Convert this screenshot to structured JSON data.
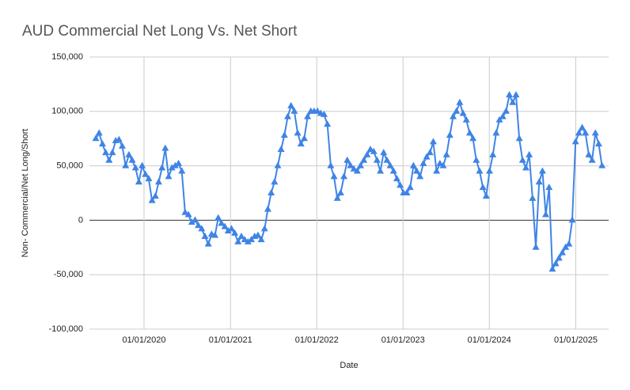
{
  "chart_data": {
    "type": "line",
    "title": "AUD Commercial Net Long Vs. Net Short",
    "x_label": "Date",
    "y_label": "Non- Commercial/Net Long/Short",
    "color": "#3f84e5",
    "grid": true,
    "xlim": [
      "2019-05-15",
      "2025-05-20"
    ],
    "xticks": [
      {
        "value": "2020-01-01",
        "label": "01/01/2020"
      },
      {
        "value": "2021-01-01",
        "label": "01/01/2021"
      },
      {
        "value": "2022-01-01",
        "label": "01/01/2022"
      },
      {
        "value": "2023-01-01",
        "label": "01/01/2023"
      },
      {
        "value": "2024-01-01",
        "label": "01/01/2024"
      },
      {
        "value": "2025-01-01",
        "label": "01/01/2025"
      }
    ],
    "ylim": [
      -100000,
      150000
    ],
    "yticks": [
      {
        "value": -100000,
        "label": "-100,000"
      },
      {
        "value": -50000,
        "label": "-50,000"
      },
      0,
      {
        "value": 50000,
        "label": "50,000"
      },
      {
        "value": 100000,
        "label": "100,000"
      },
      {
        "value": 150000,
        "label": "150,000"
      }
    ],
    "x": [
      "2019-06-11",
      "2019-06-25",
      "2019-07-09",
      "2019-07-23",
      "2019-08-06",
      "2019-08-20",
      "2019-09-03",
      "2019-09-17",
      "2019-10-01",
      "2019-10-15",
      "2019-10-29",
      "2019-11-12",
      "2019-11-26",
      "2019-12-10",
      "2019-12-24",
      "2020-01-07",
      "2020-01-21",
      "2020-02-04",
      "2020-02-18",
      "2020-03-03",
      "2020-03-17",
      "2020-03-31",
      "2020-04-14",
      "2020-04-28",
      "2020-05-12",
      "2020-05-26",
      "2020-06-09",
      "2020-06-23",
      "2020-07-07",
      "2020-07-21",
      "2020-08-04",
      "2020-08-18",
      "2020-09-01",
      "2020-09-15",
      "2020-09-29",
      "2020-10-13",
      "2020-10-27",
      "2020-11-10",
      "2020-11-24",
      "2020-12-08",
      "2020-12-22",
      "2021-01-05",
      "2021-01-19",
      "2021-02-02",
      "2021-02-16",
      "2021-03-02",
      "2021-03-16",
      "2021-03-30",
      "2021-04-13",
      "2021-04-27",
      "2021-05-11",
      "2021-05-25",
      "2021-06-08",
      "2021-06-22",
      "2021-07-06",
      "2021-07-20",
      "2021-08-03",
      "2021-08-17",
      "2021-08-31",
      "2021-09-14",
      "2021-09-28",
      "2021-10-12",
      "2021-10-26",
      "2021-11-09",
      "2021-11-23",
      "2021-12-07",
      "2021-12-21",
      "2022-01-04",
      "2022-01-18",
      "2022-02-01",
      "2022-02-15",
      "2022-03-01",
      "2022-03-15",
      "2022-03-29",
      "2022-04-12",
      "2022-04-26",
      "2022-05-10",
      "2022-05-24",
      "2022-06-07",
      "2022-06-21",
      "2022-07-05",
      "2022-07-19",
      "2022-08-02",
      "2022-08-16",
      "2022-08-30",
      "2022-09-13",
      "2022-09-27",
      "2022-10-11",
      "2022-10-25",
      "2022-11-08",
      "2022-11-22",
      "2022-12-06",
      "2022-12-20",
      "2023-01-03",
      "2023-01-17",
      "2023-01-31",
      "2023-02-14",
      "2023-02-28",
      "2023-03-14",
      "2023-03-28",
      "2023-04-11",
      "2023-04-25",
      "2023-05-09",
      "2023-05-23",
      "2023-06-06",
      "2023-06-20",
      "2023-07-04",
      "2023-07-18",
      "2023-08-01",
      "2023-08-15",
      "2023-08-29",
      "2023-09-12",
      "2023-09-26",
      "2023-10-10",
      "2023-10-24",
      "2023-11-07",
      "2023-11-21",
      "2023-12-05",
      "2023-12-19",
      "2024-01-02",
      "2024-01-16",
      "2024-01-30",
      "2024-02-13",
      "2024-02-27",
      "2024-03-12",
      "2024-03-26",
      "2024-04-09",
      "2024-04-23",
      "2024-05-07",
      "2024-05-21",
      "2024-06-04",
      "2024-06-18",
      "2024-07-02",
      "2024-07-16",
      "2024-07-30",
      "2024-08-13",
      "2024-08-27",
      "2024-09-10",
      "2024-09-24",
      "2024-10-08",
      "2024-10-22",
      "2024-11-05",
      "2024-11-19",
      "2024-12-03",
      "2024-12-17",
      "2024-12-31",
      "2025-01-14",
      "2025-01-28",
      "2025-02-11",
      "2025-02-25",
      "2025-03-11",
      "2025-03-25",
      "2025-04-08",
      "2025-04-22"
    ],
    "values": [
      75000,
      80000,
      70000,
      62000,
      55000,
      62000,
      73000,
      74000,
      68000,
      50000,
      60000,
      55000,
      48000,
      35000,
      50000,
      42000,
      38000,
      18000,
      22000,
      35000,
      48000,
      66000,
      40000,
      48000,
      50000,
      52000,
      45000,
      7000,
      5000,
      -2000,
      0,
      -5000,
      -8000,
      -15000,
      -22000,
      -13000,
      -14000,
      2000,
      -3000,
      -6000,
      -10000,
      -8000,
      -12000,
      -20000,
      -15000,
      -18000,
      -20000,
      -18000,
      -15000,
      -14000,
      -18000,
      -8000,
      10000,
      25000,
      35000,
      50000,
      65000,
      78000,
      95000,
      105000,
      100000,
      80000,
      70000,
      75000,
      95000,
      100000,
      100000,
      100000,
      98000,
      97000,
      88000,
      50000,
      40000,
      20000,
      25000,
      40000,
      55000,
      50000,
      47000,
      45000,
      50000,
      55000,
      60000,
      65000,
      63000,
      55000,
      45000,
      62000,
      55000,
      50000,
      45000,
      38000,
      32000,
      25000,
      25000,
      30000,
      50000,
      45000,
      40000,
      52000,
      58000,
      62000,
      72000,
      45000,
      52000,
      50000,
      60000,
      78000,
      95000,
      100000,
      108000,
      98000,
      92000,
      80000,
      75000,
      55000,
      45000,
      30000,
      22000,
      45000,
      60000,
      80000,
      92000,
      95000,
      100000,
      115000,
      108000,
      115000,
      75000,
      55000,
      48000,
      60000,
      20000,
      -25000,
      35000,
      45000,
      5000,
      30000,
      -45000,
      -40000,
      -35000,
      -30000,
      -25000,
      -22000,
      0,
      72000,
      80000,
      85000,
      80000,
      60000,
      55000,
      80000,
      70000,
      50000
    ]
  }
}
